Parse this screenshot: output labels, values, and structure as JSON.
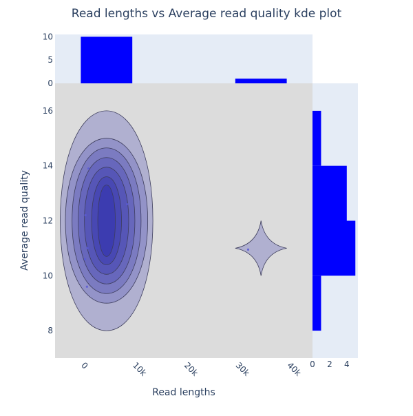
{
  "chart_data": {
    "type": "scatter",
    "title": "Read lengths vs Average read quality kde plot",
    "xlabel": "Read lengths",
    "ylabel": "Average read quality",
    "xlim": [
      -5000,
      45000
    ],
    "ylim": [
      7,
      17
    ],
    "x_ticks": [
      {
        "value": 0,
        "label": "0"
      },
      {
        "value": 10000,
        "label": "10k"
      },
      {
        "value": 20000,
        "label": "20k"
      },
      {
        "value": 30000,
        "label": "30k"
      },
      {
        "value": 40000,
        "label": "40k"
      }
    ],
    "y_ticks": [
      {
        "value": 8,
        "label": "8"
      },
      {
        "value": 10,
        "label": "10"
      },
      {
        "value": 12,
        "label": "12"
      },
      {
        "value": 14,
        "label": "14"
      },
      {
        "value": 16,
        "label": "16"
      }
    ],
    "points": [
      {
        "x": 1500,
        "y": 13.9
      },
      {
        "x": 900,
        "y": 12.2
      },
      {
        "x": 1300,
        "y": 11.0
      },
      {
        "x": 800,
        "y": 10.6
      },
      {
        "x": 1200,
        "y": 9.6
      },
      {
        "x": 9000,
        "y": 12.6
      },
      {
        "x": 32500,
        "y": 10.95
      }
    ],
    "kde_contours": [
      {
        "cx": 5000,
        "cy": 12,
        "rx": 9000,
        "ry": 4.0,
        "level": 1
      },
      {
        "cx": 5000,
        "cy": 12,
        "rx": 8000,
        "ry": 3.0,
        "level": 2
      },
      {
        "cx": 5000,
        "cy": 12,
        "rx": 6700,
        "ry": 2.65,
        "level": 3
      },
      {
        "cx": 5000,
        "cy": 12,
        "rx": 5500,
        "ry": 2.3,
        "level": 4
      },
      {
        "cx": 5000,
        "cy": 12,
        "rx": 4300,
        "ry": 1.95,
        "level": 5
      },
      {
        "cx": 5000,
        "cy": 12,
        "rx": 2900,
        "ry": 1.6,
        "level": 6
      },
      {
        "cx": 5000,
        "cy": 12,
        "rx": 1700,
        "ry": 1.3,
        "level": 7
      },
      {
        "cx": 35000,
        "cy": 11,
        "rx": 5000,
        "ry": 1.0,
        "level": 1,
        "shape": "diamond"
      }
    ],
    "top_histogram": {
      "y_ticks": [
        {
          "value": 0,
          "label": "0"
        },
        {
          "value": 5,
          "label": "5"
        },
        {
          "value": 10,
          "label": "10"
        }
      ],
      "ylim": [
        0,
        10.5
      ],
      "bins": [
        {
          "x0": 0,
          "x1": 10000,
          "count": 10
        },
        {
          "x0": 30000,
          "x1": 40000,
          "count": 1
        }
      ]
    },
    "right_histogram": {
      "x_ticks": [
        {
          "value": 0,
          "label": "0"
        },
        {
          "value": 2,
          "label": "2"
        },
        {
          "value": 4,
          "label": "4"
        }
      ],
      "xlim": [
        0,
        5.3
      ],
      "bins": [
        {
          "y0": 8,
          "y1": 10,
          "count": 1
        },
        {
          "y0": 10,
          "y1": 12,
          "count": 5
        },
        {
          "y0": 12,
          "y1": 14,
          "count": 4
        },
        {
          "y0": 14,
          "y1": 16,
          "count": 1
        }
      ]
    },
    "colors": {
      "bar": "#0000ff",
      "plot_bg": "#dcdcdc",
      "marginal_bg": "#e5ecf6",
      "contour_fill": "#0000a0",
      "contour_line": "#3d3d5c",
      "text": "#2a3f5f"
    }
  }
}
